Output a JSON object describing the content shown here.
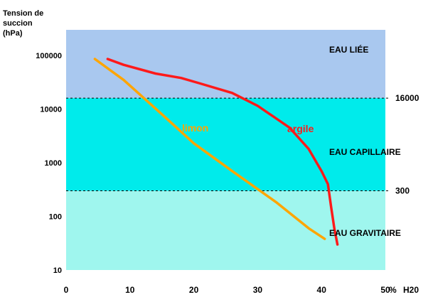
{
  "chart_data": {
    "type": "line",
    "ylabel_lines": [
      "Tension  de",
      "succion",
      "(hPa)"
    ],
    "xlabel_prefix": "%",
    "xlabel": "H20",
    "xlim": [
      0,
      50
    ],
    "ylim": [
      10,
      300000
    ],
    "yscale": "log",
    "x_ticks": [
      "0",
      "10",
      "20",
      "30",
      "40",
      "50"
    ],
    "y_ticks": [
      {
        "value": 100000,
        "label": "100000"
      },
      {
        "value": 10000,
        "label": "10000"
      },
      {
        "value": 1000,
        "label": "1000"
      },
      {
        "value": 100,
        "label": "100"
      },
      {
        "value": 10,
        "label": "10"
      }
    ],
    "zones": [
      {
        "label": "EAU  LIÉE",
        "from": 16000,
        "to": 300000,
        "color": "#a9c8ef"
      },
      {
        "label": "EAU  CAPILLAIRE",
        "from": 300,
        "to": 16000,
        "color": "#00ebeb"
      },
      {
        "label": "EAU  GRAVITAIRE",
        "from": 10,
        "to": 300,
        "color": "#9ff6ee"
      }
    ],
    "thresholds": [
      {
        "value": 16000,
        "label": "16000"
      },
      {
        "value": 300,
        "label": "300"
      }
    ],
    "series": [
      {
        "name": "argile",
        "color": "#ff1a1a",
        "points": [
          [
            6.5,
            86000
          ],
          [
            9,
            67000
          ],
          [
            14,
            46000
          ],
          [
            18,
            38000
          ],
          [
            21,
            30000
          ],
          [
            26,
            20000
          ],
          [
            30,
            11500
          ],
          [
            35,
            4500
          ],
          [
            38,
            1800
          ],
          [
            40,
            700
          ],
          [
            41,
            400
          ],
          [
            41.5,
            150
          ],
          [
            42,
            60
          ],
          [
            42.5,
            30
          ]
        ]
      },
      {
        "name": "limon",
        "color": "#ffa500",
        "points": [
          [
            4.5,
            86000
          ],
          [
            9,
            35000
          ],
          [
            15,
            8000
          ],
          [
            20,
            2300
          ],
          [
            26,
            700
          ],
          [
            33,
            180
          ],
          [
            38,
            60
          ],
          [
            40.5,
            38
          ]
        ]
      }
    ]
  }
}
